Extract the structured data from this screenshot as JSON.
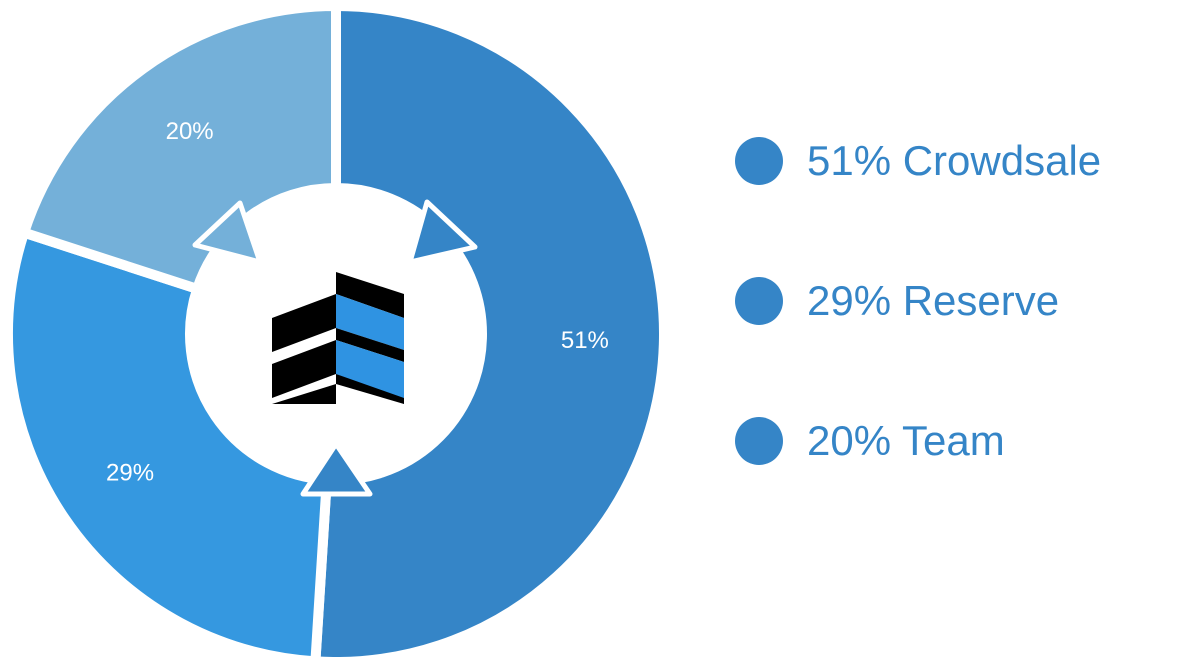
{
  "chart_data": {
    "type": "pie",
    "categories": [
      "Crowdsale",
      "Reserve",
      "Team"
    ],
    "values": [
      51,
      29,
      20
    ],
    "slice_labels": [
      "51%",
      "29%",
      "20%"
    ],
    "legend": [
      {
        "label": "51% Crowdsale"
      },
      {
        "label": "29% Reserve"
      },
      {
        "label": "20% Team"
      }
    ],
    "legend_placement": "right",
    "slice_colors": [
      "#3585c7",
      "#3598e0",
      "#74b0d9"
    ],
    "legend_color": "#3585c7",
    "center_icon": "building-logo-icon",
    "flow_icons": [
      "arrow-up-icon",
      "arrow-right-up-icon",
      "arrow-left-up-icon"
    ]
  }
}
